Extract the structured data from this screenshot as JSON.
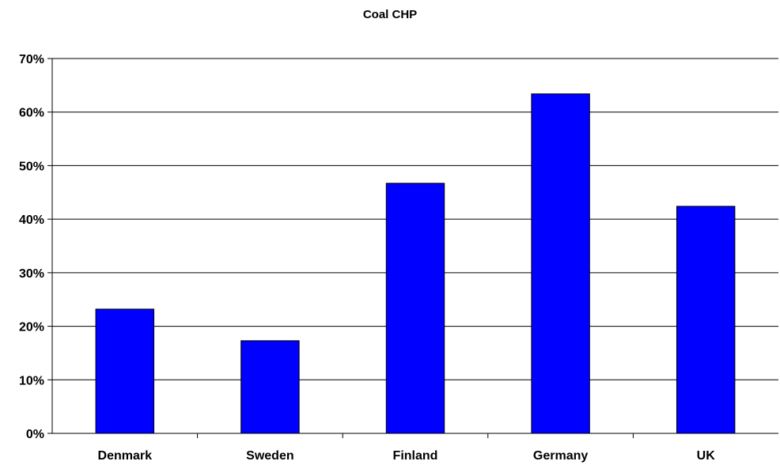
{
  "chart_data": {
    "type": "bar",
    "title": "Coal CHP",
    "xlabel": "",
    "ylabel": "",
    "categories": [
      "Denmark",
      "Sweden",
      "Finland",
      "Germany",
      "UK"
    ],
    "values": [
      23.2,
      17.3,
      46.7,
      63.4,
      42.4
    ],
    "ylim": [
      0,
      70
    ],
    "yticks": [
      0,
      10,
      20,
      30,
      40,
      50,
      60,
      70
    ],
    "ytick_labels": [
      "0%",
      "10%",
      "20%",
      "30%",
      "40%",
      "50%",
      "60%",
      "70%"
    ],
    "grid": true,
    "bar_color": "#0000FF",
    "bar_edge_color": "#000000"
  }
}
